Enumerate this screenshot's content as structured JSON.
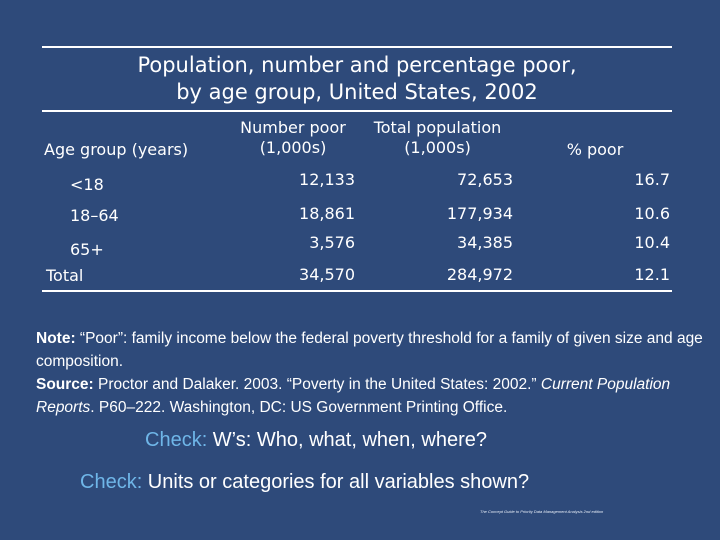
{
  "title": {
    "line1": "Population, number and percentage poor,",
    "line2": "by age group, United States, 2002"
  },
  "table": {
    "headers": {
      "age_group": "Age group (years)",
      "number_poor_1": "Number poor",
      "number_poor_2": "(1,000s)",
      "total_pop_1": "Total population",
      "total_pop_2": "(1,000s)",
      "pct_poor": "% poor"
    },
    "rows": [
      {
        "age": "<18",
        "poor": "12,133",
        "total": "72,653",
        "pct": "16.7"
      },
      {
        "age": "18–64",
        "poor": "18,861",
        "total": "177,934",
        "pct": "10.6"
      },
      {
        "age": "65+",
        "poor": "3,576",
        "total": "34,385",
        "pct": "10.4"
      },
      {
        "age": "Total",
        "poor": "34,570",
        "total": "284,972",
        "pct": "12.1"
      }
    ]
  },
  "note": {
    "note_label": "Note:",
    "note_text": " “Poor”: family income below the federal poverty threshold for a family of given size and age composition.",
    "source_label": "Source:",
    "source_text": " Proctor and Dalaker. 2003. “Poverty in the United States: 2002.” ",
    "source_italic": "Current Population Reports",
    "source_tail": ". P60–222. Washington, DC: US Government Printing Office."
  },
  "checks": [
    {
      "keyword": "Check:",
      "text": " W’s: Who, what, when, where?"
    },
    {
      "keyword": "Check:",
      "text": " Units or categories for all variables shown?"
    }
  ],
  "credit": "The Concept Guide to Priority Data Management Analysis 2nd edition",
  "colors": {
    "background": "#2e4a7a",
    "accent": "#6fb6e8",
    "text": "#ffffff"
  }
}
